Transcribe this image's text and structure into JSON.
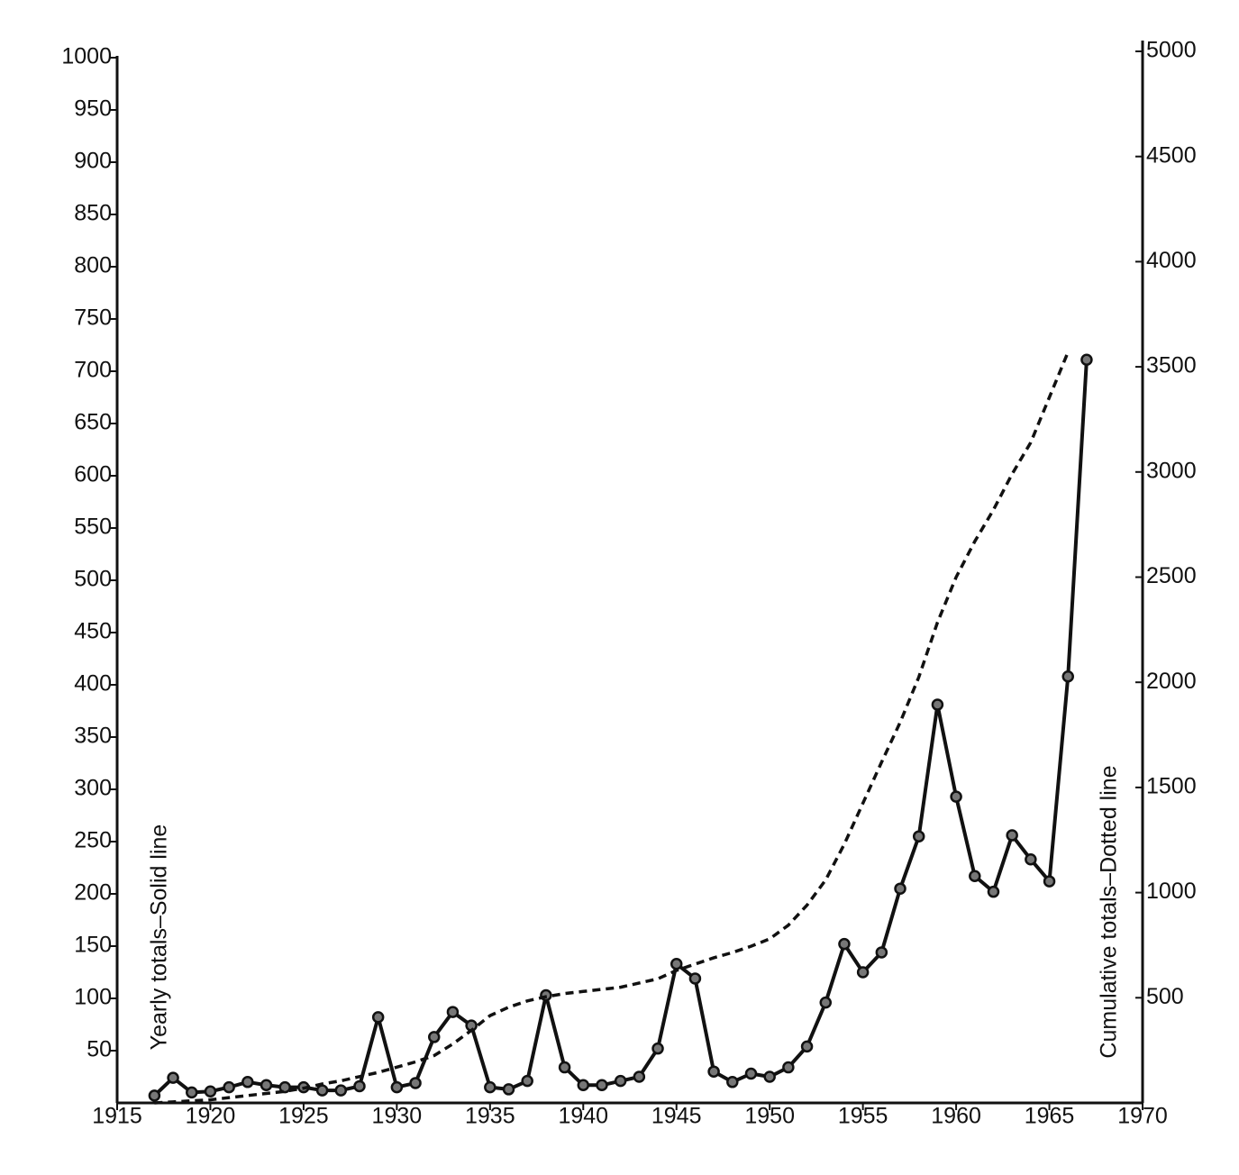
{
  "chart_data": {
    "type": "line",
    "y_label": "Yearly totals–Solid line",
    "y2_label": "Cumulative totals–Dotted line",
    "x": [
      1917,
      1918,
      1919,
      1920,
      1921,
      1922,
      1923,
      1924,
      1925,
      1926,
      1927,
      1928,
      1929,
      1930,
      1931,
      1932,
      1933,
      1934,
      1935,
      1936,
      1937,
      1938,
      1939,
      1940,
      1941,
      1942,
      1943,
      1944,
      1945,
      1946,
      1947,
      1948,
      1949,
      1950,
      1951,
      1952,
      1953,
      1954,
      1955,
      1956,
      1957,
      1958,
      1959,
      1960,
      1961,
      1962,
      1963,
      1964,
      1965,
      1966,
      1967
    ],
    "series": [
      {
        "name": "Yearly totals",
        "color": "#111111",
        "style": "solid",
        "markers": true,
        "values": [
          7,
          24,
          10,
          11,
          15,
          20,
          17,
          15,
          15,
          12,
          12,
          16,
          82,
          15,
          19,
          63,
          87,
          74,
          15,
          13,
          21,
          103,
          34,
          17,
          17,
          21,
          25,
          52,
          133,
          119,
          30,
          20,
          28,
          25,
          34,
          54,
          96,
          152,
          125,
          144,
          205,
          255,
          381,
          293,
          217,
          202,
          256,
          233,
          212,
          408,
          711
        ]
      },
      {
        "name": "Cumulative totals",
        "color": "#111111",
        "style": "dashed",
        "markers": false,
        "axis": "y2",
        "values": [
          0,
          5,
          10,
          15,
          25,
          35,
          45,
          55,
          70,
          90,
          105,
          125,
          145,
          170,
          195,
          225,
          280,
          345,
          415,
          455,
          485,
          505,
          520,
          530,
          540,
          550,
          570,
          590,
          630,
          660,
          690,
          715,
          745,
          780,
          845,
          940,
          1060,
          1230,
          1425,
          1620,
          1810,
          2025,
          2285,
          2500,
          2670,
          2820,
          2990,
          3140,
          3355,
          3570,
          null
        ]
      }
    ],
    "xlim": [
      1915,
      1970
    ],
    "xticks": [
      1915,
      1920,
      1925,
      1930,
      1935,
      1940,
      1945,
      1950,
      1955,
      1960,
      1965,
      1970
    ],
    "ylim": [
      0,
      1000
    ],
    "yticks": [
      50,
      100,
      150,
      200,
      250,
      300,
      350,
      400,
      450,
      500,
      550,
      600,
      650,
      700,
      750,
      800,
      850,
      900,
      950,
      1000
    ],
    "y2lim": [
      0,
      5000
    ],
    "y2ticks": [
      500,
      1000,
      1500,
      2000,
      2500,
      3000,
      3500,
      4000,
      4500,
      5000
    ],
    "grid": false
  }
}
